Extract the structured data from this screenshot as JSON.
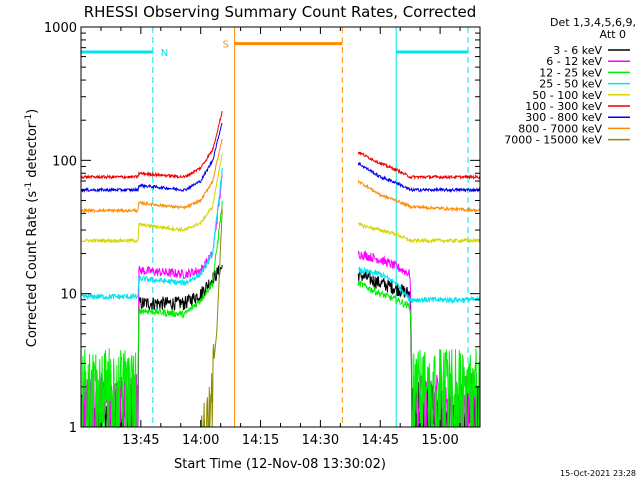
{
  "chart_data": {
    "type": "line",
    "title": "RHESSI Observing Summary Count Rates, Corrected",
    "xlabel": "Start Time (12-Nov-08 13:30:02)",
    "ylabel_main": "Corrected Count Rate (s",
    "ylabel_sup1": "-1",
    "ylabel_mid": " detector",
    "ylabel_sup2": "-1",
    "ylabel_end": ")",
    "yscale": "log",
    "ylim": [
      1,
      1000
    ],
    "xlim_minutes": [
      0,
      100
    ],
    "x_ticks": [
      {
        "m": 15,
        "label": "13:45"
      },
      {
        "m": 30,
        "label": "14:00"
      },
      {
        "m": 45,
        "label": "14:15"
      },
      {
        "m": 60,
        "label": "14:30"
      },
      {
        "m": 75,
        "label": "14:45"
      },
      {
        "m": 90,
        "label": "15:00"
      }
    ],
    "y_ticks": [
      {
        "v": 1,
        "label": "1"
      },
      {
        "v": 10,
        "label": "10"
      },
      {
        "v": 100,
        "label": "100"
      },
      {
        "v": 1000,
        "label": "1000"
      }
    ],
    "legend": {
      "header1": "Det 1,3,4,5,6,9,",
      "header2": "Att 0",
      "placement": "right"
    },
    "series": [
      {
        "name": "3 - 6 keV",
        "color": "#000000",
        "noise": 0.12,
        "pre": [
          [
            0,
            1.5
          ],
          [
            14.3,
            1.5
          ],
          [
            14.5,
            8.5
          ],
          [
            26,
            8.5
          ],
          [
            30,
            10
          ],
          [
            33,
            13
          ],
          [
            35.5,
            16
          ]
        ],
        "post": [
          [
            69.5,
            14
          ],
          [
            75,
            12
          ],
          [
            79,
            11
          ],
          [
            82.5,
            10
          ],
          [
            83,
            1.5
          ],
          [
            100,
            1.5
          ]
        ]
      },
      {
        "name": "6 - 12 keV",
        "color": "#ff00ff",
        "noise": 0.08,
        "pre": [
          [
            0,
            1.8
          ],
          [
            14.3,
            1.8
          ],
          [
            14.5,
            15
          ],
          [
            26,
            14
          ],
          [
            30,
            15
          ],
          [
            33,
            20
          ],
          [
            35.5,
            80
          ]
        ],
        "post": [
          [
            69.5,
            20
          ],
          [
            75,
            18
          ],
          [
            79,
            16
          ],
          [
            82.5,
            14
          ],
          [
            83,
            1.8
          ],
          [
            100,
            1.8
          ]
        ]
      },
      {
        "name": "12 - 25 keV",
        "color": "#00ee00",
        "noise": 0.06,
        "pre": [
          [
            0,
            2.7
          ],
          [
            14.3,
            2.7
          ],
          [
            14.5,
            7.5
          ],
          [
            26,
            7
          ],
          [
            30,
            9
          ],
          [
            33,
            12
          ],
          [
            35.5,
            50
          ]
        ],
        "post": [
          [
            69.5,
            12
          ],
          [
            75,
            10
          ],
          [
            79,
            9
          ],
          [
            82.5,
            8
          ],
          [
            83,
            2.7
          ],
          [
            100,
            2.7
          ]
        ]
      },
      {
        "name": "25 - 50 keV",
        "color": "#00e5ee",
        "noise": 0.05,
        "pre": [
          [
            0,
            9.5
          ],
          [
            14.3,
            9.5
          ],
          [
            14.5,
            13
          ],
          [
            26,
            12
          ],
          [
            30,
            14
          ],
          [
            33,
            20
          ],
          [
            35.5,
            90
          ]
        ],
        "post": [
          [
            69.5,
            15
          ],
          [
            75,
            14
          ],
          [
            79,
            12
          ],
          [
            82.5,
            9
          ],
          [
            100,
            9
          ]
        ]
      },
      {
        "name": "50 - 100 keV",
        "color": "#d6d600",
        "noise": 0.03,
        "pre": [
          [
            0,
            25
          ],
          [
            14.3,
            25
          ],
          [
            14.5,
            33
          ],
          [
            26,
            30
          ],
          [
            30,
            34
          ],
          [
            33,
            45
          ],
          [
            35.5,
            120
          ]
        ],
        "post": [
          [
            69.5,
            33
          ],
          [
            75,
            30
          ],
          [
            79,
            28
          ],
          [
            82.5,
            25
          ],
          [
            100,
            25
          ]
        ]
      },
      {
        "name": "100 - 300 keV",
        "color": "#ee0000",
        "noise": 0.025,
        "pre": [
          [
            0,
            75
          ],
          [
            14.3,
            75
          ],
          [
            14.5,
            80
          ],
          [
            26,
            75
          ],
          [
            30,
            88
          ],
          [
            33,
            120
          ],
          [
            35.5,
            240
          ]
        ],
        "post": [
          [
            69.5,
            115
          ],
          [
            75,
            95
          ],
          [
            79,
            85
          ],
          [
            82.5,
            75
          ],
          [
            100,
            75
          ]
        ]
      },
      {
        "name": "300 - 800 keV",
        "color": "#0000ee",
        "noise": 0.025,
        "pre": [
          [
            0,
            60
          ],
          [
            14.3,
            60
          ],
          [
            14.5,
            65
          ],
          [
            26,
            60
          ],
          [
            30,
            70
          ],
          [
            33,
            100
          ],
          [
            35.5,
            200
          ]
        ],
        "post": [
          [
            69.5,
            95
          ],
          [
            75,
            75
          ],
          [
            79,
            68
          ],
          [
            82.5,
            60
          ],
          [
            100,
            60
          ]
        ]
      },
      {
        "name": "800 - 7000 keV",
        "color": "#ff8c00",
        "noise": 0.025,
        "pre": [
          [
            0,
            42
          ],
          [
            14.3,
            42
          ],
          [
            14.5,
            48
          ],
          [
            26,
            44
          ],
          [
            30,
            50
          ],
          [
            33,
            70
          ],
          [
            35.5,
            150
          ]
        ],
        "post": [
          [
            69.5,
            70
          ],
          [
            75,
            55
          ],
          [
            79,
            50
          ],
          [
            82.5,
            45
          ],
          [
            100,
            42
          ]
        ]
      },
      {
        "name": "7000 - 15000 keV",
        "color": "#8b8b00",
        "noise": 0.0,
        "pre": [
          [
            30,
            1.0
          ],
          [
            32,
            1.3
          ],
          [
            34,
            5
          ],
          [
            35.5,
            50
          ]
        ],
        "post": []
      }
    ],
    "annotations": {
      "night_label": "N",
      "saa_label": "S",
      "timestamp": "15-Oct-2021 23:28"
    }
  }
}
